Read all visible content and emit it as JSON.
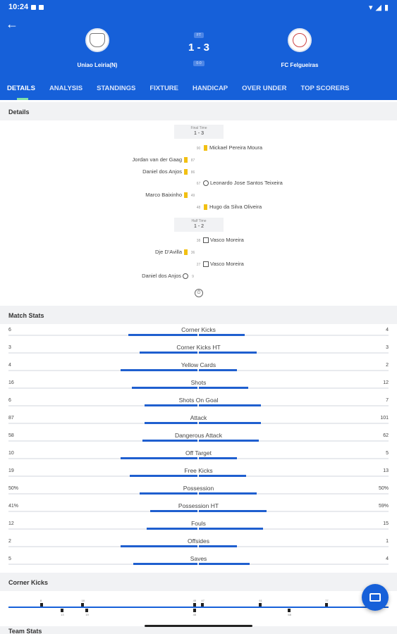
{
  "status": {
    "time": "10:24"
  },
  "match": {
    "home": "Uniao Leiria(N)",
    "away": "FC Felgueiras",
    "status_pill": "FT",
    "score": "1 - 3",
    "sub_pill": "0-0"
  },
  "tabs": [
    "DETAILS",
    "ANALYSIS",
    "STANDINGS",
    "FIXTURE",
    "HANDICAP",
    "OVER UNDER",
    "TOP SCORERS"
  ],
  "sections": {
    "details": "Details",
    "match_stats": "Match Stats",
    "corner_kicks": "Corner Kicks",
    "team_stats": "Team Stats"
  },
  "phases": {
    "full": {
      "label": "Final Time",
      "score": "1 - 3"
    },
    "half": {
      "label": "Half Time",
      "score": "1 - 2"
    }
  },
  "events": [
    {
      "side": "right",
      "minute": "90",
      "icon": "yellow-card",
      "player": "Mickael Pereira Moura"
    },
    {
      "side": "left",
      "minute": "87",
      "icon": "yellow-card",
      "player": "Jordan van der Gaag"
    },
    {
      "side": "left",
      "minute": "86",
      "icon": "yellow-card",
      "player": "Daniel dos Anjos"
    },
    {
      "side": "right",
      "minute": "67",
      "icon": "goal",
      "player": "Leonardo Jose Santos Teixeira"
    },
    {
      "side": "left",
      "minute": "49",
      "icon": "yellow-card",
      "player": "Marco Baixinho"
    },
    {
      "side": "right",
      "minute": "48",
      "icon": "yellow-card",
      "player": "Hugo da Silva Oliveira"
    },
    {
      "side": "right",
      "minute": "38",
      "icon": "penalty",
      "player": "Vasco Moreira"
    },
    {
      "side": "left",
      "minute": "36",
      "icon": "yellow-card",
      "player": "Dje D'Avilla"
    },
    {
      "side": "right",
      "minute": "27",
      "icon": "penalty",
      "player": "Vasco Moreira"
    },
    {
      "side": "left",
      "minute": "9",
      "icon": "goal",
      "player": "Daniel dos Anjos"
    }
  ],
  "stats": [
    {
      "name": "Corner Kicks",
      "home": "6",
      "away": "4",
      "hf": 0.6,
      "af": 0.4
    },
    {
      "name": "Corner Kicks HT",
      "home": "3",
      "away": "3",
      "hf": 0.5,
      "af": 0.5
    },
    {
      "name": "Yellow Cards",
      "home": "4",
      "away": "2",
      "hf": 0.67,
      "af": 0.33
    },
    {
      "name": "Shots",
      "home": "16",
      "away": "12",
      "hf": 0.57,
      "af": 0.43
    },
    {
      "name": "Shots On Goal",
      "home": "6",
      "away": "7",
      "hf": 0.46,
      "af": 0.54
    },
    {
      "name": "Attack",
      "home": "87",
      "away": "101",
      "hf": 0.46,
      "af": 0.54
    },
    {
      "name": "Dangerous Attack",
      "home": "58",
      "away": "62",
      "hf": 0.48,
      "af": 0.52
    },
    {
      "name": "Off Target",
      "home": "10",
      "away": "5",
      "hf": 0.67,
      "af": 0.33
    },
    {
      "name": "Free Kicks",
      "home": "19",
      "away": "13",
      "hf": 0.59,
      "af": 0.41
    },
    {
      "name": "Possession",
      "home": "50%",
      "away": "50%",
      "hf": 0.5,
      "af": 0.5
    },
    {
      "name": "Possession HT",
      "home": "41%",
      "away": "59%",
      "hf": 0.41,
      "af": 0.59
    },
    {
      "name": "Fouls",
      "home": "12",
      "away": "15",
      "hf": 0.44,
      "af": 0.56
    },
    {
      "name": "Offsides",
      "home": "2",
      "away": "1",
      "hf": 0.67,
      "af": 0.33
    },
    {
      "name": "Saves",
      "home": "5",
      "away": "4",
      "hf": 0.56,
      "af": 0.44
    }
  ],
  "corner_marks": {
    "top": [
      "8",
      "18",
      "45",
      "47",
      "61",
      "77"
    ],
    "bottom": [
      "13",
      "19",
      "45",
      "68"
    ]
  }
}
